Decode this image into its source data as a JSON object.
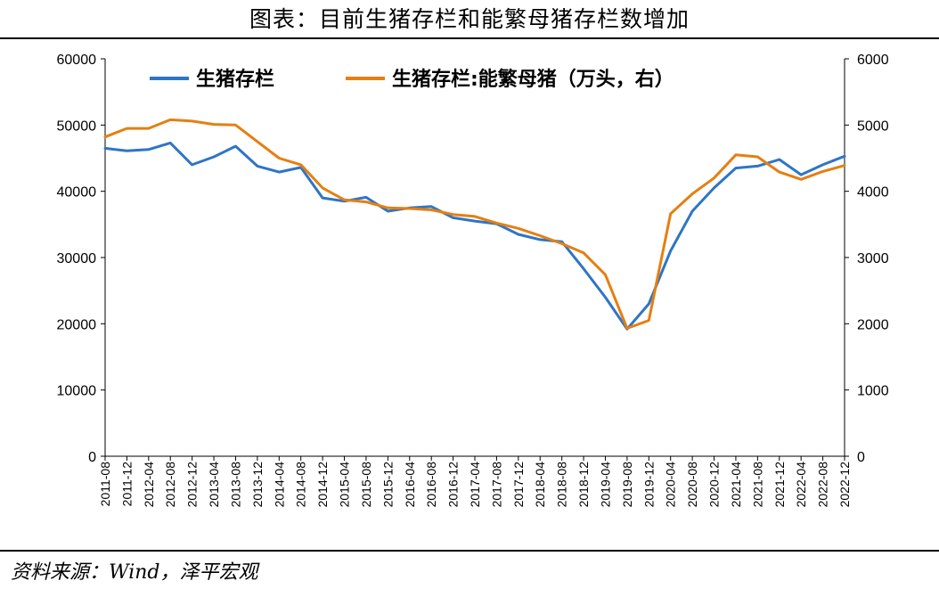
{
  "header": {
    "title": "图表：目前生猪存栏和能繁母猪存栏数增加"
  },
  "footer": {
    "source": "资料来源：Wind，泽平宏观"
  },
  "chart_data": {
    "type": "line",
    "title": "图表：目前生猪存栏和能繁母猪存栏数增加",
    "x": [
      "2011-08",
      "2011-12",
      "2012-04",
      "2012-08",
      "2012-12",
      "2013-04",
      "2013-08",
      "2013-12",
      "2014-04",
      "2014-08",
      "2014-12",
      "2015-04",
      "2015-08",
      "2015-12",
      "2016-04",
      "2016-08",
      "2016-12",
      "2017-04",
      "2017-08",
      "2017-12",
      "2018-04",
      "2018-08",
      "2018-12",
      "2019-04",
      "2019-08",
      "2019-12",
      "2020-04",
      "2020-08",
      "2020-12",
      "2021-04",
      "2021-08",
      "2021-12",
      "2022-04",
      "2022-08",
      "2022-12"
    ],
    "y_left": {
      "range": [
        0,
        60000
      ],
      "ticks": [
        "0",
        "10000",
        "20000",
        "30000",
        "40000",
        "50000",
        "60000"
      ]
    },
    "y_right": {
      "range": [
        0,
        6000
      ],
      "ticks": [
        "0",
        "1000",
        "2000",
        "3000",
        "4000",
        "5000",
        "6000"
      ]
    },
    "legend_position": "top",
    "grid": false,
    "series": [
      {
        "name": "生猪存栏",
        "axis": "left",
        "color": "#2e75c6",
        "values": [
          46500,
          46100,
          46300,
          47300,
          44000,
          45200,
          46800,
          43800,
          42900,
          43600,
          39000,
          38500,
          39100,
          37000,
          37500,
          37700,
          36000,
          35500,
          35100,
          33500,
          32700,
          32400,
          28300,
          24000,
          19200,
          23000,
          31000,
          37000,
          40500,
          43500,
          43800,
          44800,
          42500,
          44000,
          45300
        ]
      },
      {
        "name": "生猪存栏:能繁母猪（万头，右）",
        "axis": "right",
        "color": "#e57f12",
        "values": [
          4820,
          4950,
          4950,
          5080,
          5060,
          5010,
          5000,
          4750,
          4500,
          4400,
          4050,
          3870,
          3840,
          3750,
          3740,
          3720,
          3650,
          3620,
          3520,
          3440,
          3330,
          3210,
          3070,
          2740,
          1930,
          2050,
          3660,
          3960,
          4200,
          4550,
          4520,
          4290,
          4180,
          4300,
          4390
        ]
      }
    ]
  }
}
